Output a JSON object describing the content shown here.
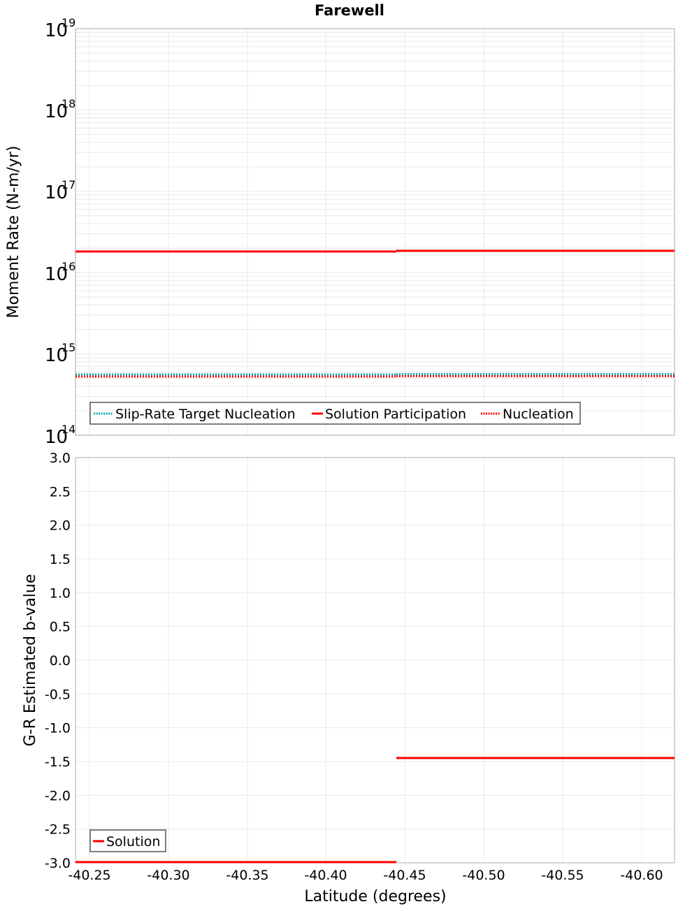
{
  "title": "Farewell",
  "chart_data": [
    {
      "type": "line",
      "title": "Farewell",
      "xlabel": "Latitude (degrees)",
      "ylabel": "Moment Rate (N-m/yr)",
      "yscale": "log",
      "ylim": [
        100000000000000.0,
        1e+19
      ],
      "xlim": [
        -40.241,
        -40.621
      ],
      "y_ticks": [
        "10^14",
        "10^15",
        "10^16",
        "10^17",
        "10^18",
        "10^19"
      ],
      "grid": true,
      "legend_position": "lower-left",
      "series": [
        {
          "name": "Slip-Rate Target Nucleation",
          "color": "#00aaaa",
          "style": "dotted",
          "x": [
            -40.241,
            -40.445,
            -40.445,
            -40.621
          ],
          "y": [
            540000000000000.0,
            540000000000000.0,
            550000000000000.0,
            550000000000000.0
          ]
        },
        {
          "name": "Solution Participation",
          "color": "#ff0000",
          "style": "solid",
          "x": [
            -40.241,
            -40.445,
            -40.445,
            -40.621
          ],
          "y": [
            1.86e+16,
            1.86e+16,
            1.9e+16,
            1.9e+16
          ]
        },
        {
          "name": "Nucleation",
          "color": "#ff0000",
          "style": "dotted",
          "x": [
            -40.241,
            -40.445,
            -40.445,
            -40.621
          ],
          "y": [
            500000000000000.0,
            500000000000000.0,
            510000000000000.0,
            510000000000000.0
          ]
        }
      ]
    },
    {
      "type": "line",
      "xlabel": "Latitude (degrees)",
      "ylabel": "G-R Estimated b-value",
      "ylim": [
        -3.0,
        3.0
      ],
      "xlim": [
        -40.241,
        -40.621
      ],
      "x_ticks": [
        "-40.25",
        "-40.30",
        "-40.35",
        "-40.40",
        "-40.45",
        "-40.50",
        "-40.55",
        "-40.60"
      ],
      "y_ticks": [
        "3.0",
        "2.5",
        "2.0",
        "1.5",
        "1.0",
        "0.5",
        "0.0",
        "-0.5",
        "-1.0",
        "-1.5",
        "-2.0",
        "-2.5",
        "-3.0"
      ],
      "grid": true,
      "legend_position": "lower-left",
      "series": [
        {
          "name": "Solution",
          "color": "#ff0000",
          "style": "solid",
          "x": [
            -40.241,
            -40.445,
            -40.445,
            -40.621
          ],
          "y": [
            -3.0,
            -3.0,
            -1.45,
            -1.45
          ]
        }
      ]
    }
  ],
  "top": {
    "ylabel": "Moment Rate (N-m/yr)",
    "ticks": [
      {
        "base": "10",
        "exp": "19"
      },
      {
        "base": "10",
        "exp": "18"
      },
      {
        "base": "10",
        "exp": "17"
      },
      {
        "base": "10",
        "exp": "16"
      },
      {
        "base": "10",
        "exp": "15"
      },
      {
        "base": "10",
        "exp": "14"
      }
    ],
    "legend": [
      "Slip-Rate Target Nucleation",
      "Solution Participation",
      "Nucleation"
    ]
  },
  "bottom": {
    "ylabel": "G-R Estimated b-value",
    "yticks": [
      "3.0",
      "2.5",
      "2.0",
      "1.5",
      "1.0",
      "0.5",
      "0.0",
      "-0.5",
      "-1.0",
      "-1.5",
      "-2.0",
      "-2.5",
      "-3.0"
    ],
    "xticks": [
      "-40.25",
      "-40.30",
      "-40.35",
      "-40.40",
      "-40.45",
      "-40.50",
      "-40.55",
      "-40.60"
    ],
    "xlabel": "Latitude (degrees)",
    "legend": [
      "Solution"
    ]
  },
  "colors": {
    "red": "#ff0000",
    "cyan": "#00aaaa",
    "grid": "#e6e6e6",
    "frame": "#aaaaaa"
  }
}
